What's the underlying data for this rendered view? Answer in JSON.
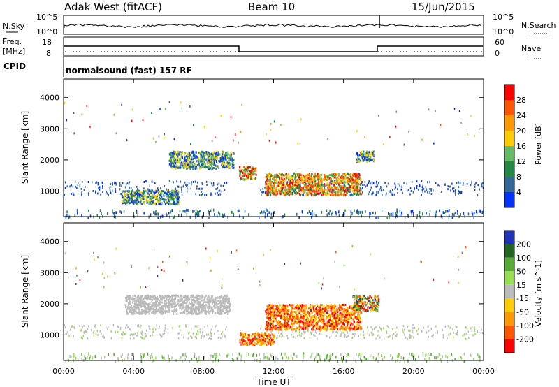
{
  "header": {
    "station": "Adak West (fitACF)",
    "beam": "Beam 10",
    "date": "15/Jun/2015"
  },
  "top_panels": {
    "nsky_label": "N.Sky",
    "nsky_ticks": [
      "10^5",
      "10^0"
    ],
    "nsearch_label": "N.Search",
    "nsearch_ticks": [
      "10^5",
      "10^0"
    ],
    "freq_label": "Freq.",
    "freq_unit": "[MHz]",
    "freq_ticks": [
      "18",
      "8"
    ],
    "nave_label": "Nave",
    "nave_ticks": [
      "60",
      "0"
    ],
    "cpid_label": "CPID",
    "cpid_text": "normalsound (fast) 157 RF"
  },
  "chart_data": [
    {
      "type": "heatmap",
      "ylabel": "Slant Range [km]",
      "yticks": [
        1000,
        2000,
        3000,
        4000
      ],
      "ylim": [
        180,
        4600
      ],
      "colorbar_label": "Power [dB]",
      "colorbar_ticks": [
        "28",
        "24",
        "20",
        "16",
        "12",
        "8",
        "4"
      ],
      "colorbar_colors": [
        "#ff0000",
        "#ff5500",
        "#ff9900",
        "#ffcc00",
        "#66bb66",
        "#228844",
        "#336699",
        "#0033ff"
      ],
      "regions": [
        {
          "x": [
            3.3,
            6.6
          ],
          "y": [
            600,
            1050
          ],
          "level": "mid"
        },
        {
          "x": [
            6.0,
            9.7
          ],
          "y": [
            1750,
            2300
          ],
          "level": "mid"
        },
        {
          "x": [
            10.0,
            11.0
          ],
          "y": [
            1400,
            1800
          ],
          "level": "high"
        },
        {
          "x": [
            11.5,
            17.0
          ],
          "y": [
            900,
            1600
          ],
          "level": "high"
        },
        {
          "x": [
            16.7,
            17.7
          ],
          "y": [
            1950,
            2300
          ],
          "level": "mid"
        }
      ]
    },
    {
      "type": "heatmap",
      "ylabel": "Slant Range [km]",
      "yticks": [
        1000,
        2000,
        3000,
        4000
      ],
      "ylim": [
        180,
        4600
      ],
      "xlabel": "Time UT",
      "xticks": [
        "00:00",
        "04:00",
        "08:00",
        "12:00",
        "16:00",
        "20:00",
        "00:00"
      ],
      "xlim_hours": [
        0,
        24
      ],
      "colorbar_label": "Velocity [m s^-1]",
      "colorbar_ticks": [
        "200",
        "100",
        "50",
        "15",
        "-15",
        "-50",
        "-100",
        "-200"
      ],
      "colorbar_colors": [
        "#2233bb",
        "#226622",
        "#55aa33",
        "#99dd55",
        "#bbbbbb",
        "#ffcc00",
        "#ff9900",
        "#ff5500",
        "#ff0000"
      ],
      "regions": [
        {
          "x": [
            11.5,
            17.0
          ],
          "y": [
            1200,
            2000
          ],
          "level": "negative"
        },
        {
          "x": [
            10.0,
            12.0
          ],
          "y": [
            700,
            1100
          ],
          "level": "negative"
        },
        {
          "x": [
            3.5,
            9.5
          ],
          "y": [
            1700,
            2300
          ],
          "level": "neutral"
        },
        {
          "x": [
            16.5,
            18.0
          ],
          "y": [
            1800,
            2300
          ],
          "level": "mixed"
        }
      ]
    }
  ],
  "time_axis_label": "Time UT"
}
